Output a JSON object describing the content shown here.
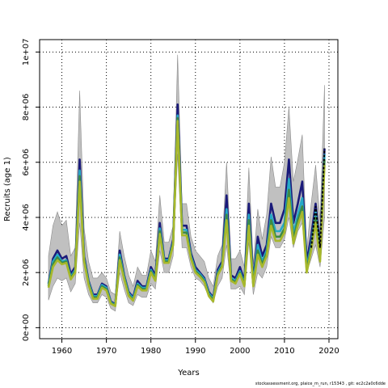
{
  "chart_data": {
    "type": "area",
    "title": "",
    "xlabel": "Years",
    "ylabel": "Recruits (age 1)",
    "xlim": [
      1955,
      2022
    ],
    "ylim": [
      -400000,
      10450000
    ],
    "xticks": [
      1960,
      1970,
      1980,
      1990,
      2000,
      2010,
      2020
    ],
    "xtick_labels": [
      "1960",
      "1970",
      "1980",
      "1990",
      "2000",
      "2010",
      "2020"
    ],
    "yticks": [
      0,
      2000000,
      4000000,
      6000000,
      8000000,
      10000000
    ],
    "ytick_labels": [
      "0e+00",
      "2e+06",
      "4e+06",
      "6e+06",
      "8e+06",
      "1e+07"
    ],
    "grid": true,
    "grid_style": "dotted",
    "colors": {
      "band": "#c0c0c0",
      "band_edge": "#8c8c8c",
      "grid": "#000000",
      "dashed": "#000000"
    },
    "years": [
      1957,
      1958,
      1959,
      1960,
      1961,
      1962,
      1963,
      1964,
      1965,
      1966,
      1967,
      1968,
      1969,
      1970,
      1971,
      1972,
      1973,
      1974,
      1975,
      1976,
      1977,
      1978,
      1979,
      1980,
      1981,
      1982,
      1983,
      1984,
      1985,
      1986,
      1987,
      1988,
      1989,
      1990,
      1991,
      1992,
      1993,
      1994,
      1995,
      1996,
      1997,
      1998,
      1999,
      2000,
      2001,
      2002,
      2003,
      2004,
      2005,
      2006,
      2007,
      2008,
      2009,
      2010,
      2011,
      2012,
      2013,
      2014,
      2015,
      2016,
      2017,
      2018,
      2019
    ],
    "uncertainty": {
      "lower": [
        1000000,
        1500000,
        1800000,
        1700000,
        1800000,
        1300000,
        1600000,
        3800000,
        1800000,
        1200000,
        900000,
        900000,
        1200000,
        1100000,
        700000,
        600000,
        2000000,
        1400000,
        900000,
        800000,
        1200000,
        1100000,
        1100000,
        1600000,
        1400000,
        2800000,
        2000000,
        2000000,
        2600000,
        6300000,
        2900000,
        2900000,
        2200000,
        1800000,
        1700000,
        1500000,
        1100000,
        900000,
        1500000,
        1800000,
        3000000,
        1400000,
        1400000,
        1500000,
        1200000,
        3100000,
        1200000,
        2000000,
        1800000,
        2200000,
        3300000,
        2900000,
        2900000,
        3200000,
        4000000,
        2900000,
        3500000,
        3800000,
        2000000,
        2500000,
        3000000,
        2200000,
        4000000
      ],
      "upper": [
        2600000,
        3700000,
        4200000,
        3700000,
        3900000,
        2600000,
        2900000,
        8600000,
        3600000,
        2400000,
        1800000,
        1800000,
        2000000,
        1800000,
        1300000,
        1200000,
        3500000,
        2600000,
        1900000,
        1500000,
        2200000,
        1900000,
        1900000,
        2800000,
        2400000,
        4800000,
        3100000,
        3100000,
        3700000,
        9900000,
        4500000,
        4500000,
        3300000,
        2800000,
        2600000,
        2400000,
        1800000,
        1500000,
        2600000,
        3000000,
        6000000,
        2500000,
        2500000,
        2800000,
        2200000,
        5800000,
        2300000,
        4300000,
        3200000,
        4100000,
        6200000,
        5100000,
        5100000,
        6000000,
        8000000,
        5300000,
        6100000,
        7000000,
        2800000,
        4500000,
        5900000,
        3900000,
        8800000
      ]
    },
    "series": [
      {
        "color": "#1a1a7a",
        "values": [
          1600000,
          2500000,
          2800000,
          2500000,
          2600000,
          1950000,
          2200000,
          6100000,
          2600000,
          1700000,
          1200000,
          1200000,
          1600000,
          1500000,
          950000,
          850000,
          2800000,
          1900000,
          1300000,
          1100000,
          1700000,
          1500000,
          1500000,
          2200000,
          1900000,
          3800000,
          2500000,
          2500000,
          3200000,
          8100000,
          3700000,
          3700000,
          2700000,
          2200000,
          2000000,
          1800000,
          1300000,
          1100000,
          2100000,
          2400000,
          4800000,
          1900000,
          1800000,
          2200000,
          1700000,
          4500000,
          1700000,
          3300000,
          2600000,
          3000000,
          4500000,
          3800000,
          3800000,
          4300000,
          6100000,
          3800000,
          4500000,
          5300000,
          2400000,
          3300000,
          4500000,
          2900000,
          6500000
        ]
      },
      {
        "color": "#26a9c6",
        "values": [
          1550000,
          2400000,
          2650000,
          2400000,
          2450000,
          1850000,
          2100000,
          5700000,
          2500000,
          1650000,
          1150000,
          1150000,
          1550000,
          1450000,
          920000,
          820000,
          2650000,
          1850000,
          1250000,
          1050000,
          1600000,
          1450000,
          1450000,
          2100000,
          1800000,
          3600000,
          2450000,
          2450000,
          3100000,
          7700000,
          3550000,
          3550000,
          2600000,
          2100000,
          1950000,
          1750000,
          1250000,
          1050000,
          2000000,
          2300000,
          4300000,
          1800000,
          1700000,
          2050000,
          1600000,
          4100000,
          1600000,
          3000000,
          2400000,
          2800000,
          4100000,
          3500000,
          3500000,
          3800000,
          5400000,
          3400000,
          4100000,
          4700000,
          2200000,
          3000000,
          4200000,
          2600000,
          6300000
        ]
      },
      {
        "color": "#3c8a46",
        "values": [
          1500000,
          2300000,
          2550000,
          2350000,
          2400000,
          1800000,
          2050000,
          5500000,
          2450000,
          1600000,
          1100000,
          1100000,
          1500000,
          1400000,
          900000,
          800000,
          2550000,
          1800000,
          1200000,
          1000000,
          1550000,
          1400000,
          1400000,
          2050000,
          1750000,
          3500000,
          2400000,
          2400000,
          3050000,
          7600000,
          3450000,
          3450000,
          2550000,
          2050000,
          1900000,
          1700000,
          1200000,
          1000000,
          1950000,
          2250000,
          4100000,
          1750000,
          1650000,
          2000000,
          1550000,
          3900000,
          1550000,
          2800000,
          2300000,
          2700000,
          3900000,
          3300000,
          3300000,
          3600000,
          5000000,
          3200000,
          3900000,
          4400000,
          2100000,
          2900000,
          4000000,
          2500000,
          6100000
        ]
      },
      {
        "color": "#a7b82b",
        "values": [
          1450000,
          2200000,
          2450000,
          2300000,
          2350000,
          1750000,
          2000000,
          5300000,
          2400000,
          1550000,
          1050000,
          1050000,
          1450000,
          1350000,
          870000,
          780000,
          2450000,
          1750000,
          1150000,
          980000,
          1500000,
          1350000,
          1350000,
          2000000,
          1700000,
          3400000,
          2350000,
          2350000,
          3000000,
          7500000,
          3350000,
          3350000,
          2500000,
          2000000,
          1850000,
          1650000,
          1150000,
          950000,
          1900000,
          2200000,
          3900000,
          1700000,
          1600000,
          1950000,
          1500000,
          3700000,
          1500000,
          2650000,
          2200000,
          2600000,
          3700000,
          3150000,
          3150000,
          3450000,
          4700000,
          3050000,
          3700000,
          4200000,
          2000000,
          2800000,
          3800000,
          2400000,
          5900000
        ]
      }
    ],
    "dashed_series": {
      "years": [
        2016,
        2017,
        2018,
        2019
      ],
      "values": [
        2900000,
        4400000,
        2900000,
        6500000
      ]
    }
  },
  "footer_text": "stockassessment.org, plaice_m_run, r15343 , git: ec2c2a0c6dde"
}
